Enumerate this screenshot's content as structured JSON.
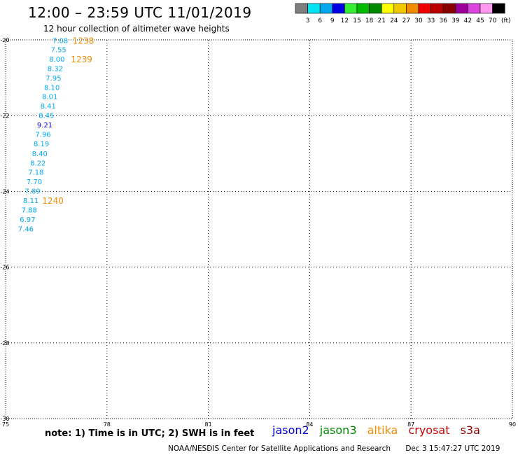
{
  "header": {
    "title": "12:00 – 23:59 UTC 11/01/2019",
    "subtitle": "12 hour collection of altimeter wave heights"
  },
  "color_scale": {
    "unit": "(ft)",
    "bins": [
      {
        "label": "3",
        "color": "#7f7f7f"
      },
      {
        "label": "6",
        "color": "#00e5f0"
      },
      {
        "label": "9",
        "color": "#00a8ee"
      },
      {
        "label": "12",
        "color": "#0000e0"
      },
      {
        "label": "15",
        "color": "#33ee33"
      },
      {
        "label": "18",
        "color": "#00bb00"
      },
      {
        "label": "21",
        "color": "#008800"
      },
      {
        "label": "24",
        "color": "#ffff00"
      },
      {
        "label": "27",
        "color": "#f0c800"
      },
      {
        "label": "30",
        "color": "#f08c00"
      },
      {
        "label": "33",
        "color": "#ee0000"
      },
      {
        "label": "36",
        "color": "#bb0000"
      },
      {
        "label": "39",
        "color": "#880000"
      },
      {
        "label": "42",
        "color": "#9a009a"
      },
      {
        "label": "45",
        "color": "#dd44dd"
      },
      {
        "label": "70",
        "color": "#ff99ee"
      },
      {
        "label": "",
        "color": "#000000"
      }
    ]
  },
  "chart_data": {
    "type": "scatter",
    "xlim": [
      75,
      90
    ],
    "ylim": [
      -30,
      -20
    ],
    "xticks": [
      {
        "value": 75,
        "label": "75"
      },
      {
        "value": 78,
        "label": "78"
      },
      {
        "value": 81,
        "label": "81"
      },
      {
        "value": 84,
        "label": "84"
      },
      {
        "value": 87,
        "label": "87"
      },
      {
        "value": 90,
        "label": "90"
      }
    ],
    "yticks": [
      {
        "value": -20,
        "label": "-20"
      },
      {
        "value": -22,
        "label": "-22"
      },
      {
        "value": -24,
        "label": "-24"
      },
      {
        "value": -26,
        "label": "-26"
      },
      {
        "value": -28,
        "label": "-28"
      },
      {
        "value": -30,
        "label": "-30"
      }
    ],
    "grid": true,
    "points": [
      {
        "lon": 76.85,
        "lat": -20.01,
        "label": "7.08",
        "color": "#00a8ee"
      },
      {
        "lon": 76.8,
        "lat": -20.25,
        "label": "7.55",
        "color": "#00a8ee"
      },
      {
        "lon": 76.75,
        "lat": -20.5,
        "label": "8.00",
        "color": "#00a8ee"
      },
      {
        "lon": 76.7,
        "lat": -20.75,
        "label": "8.32",
        "color": "#00a8ee"
      },
      {
        "lon": 76.65,
        "lat": -21.0,
        "label": "7.95",
        "color": "#00a8ee"
      },
      {
        "lon": 76.6,
        "lat": -21.25,
        "label": "8.10",
        "color": "#00a8ee"
      },
      {
        "lon": 76.54,
        "lat": -21.49,
        "label": "8.01",
        "color": "#00a8ee"
      },
      {
        "lon": 76.49,
        "lat": -21.74,
        "label": "8.41",
        "color": "#00a8ee"
      },
      {
        "lon": 76.44,
        "lat": -21.99,
        "label": "8.45",
        "color": "#00a8ee"
      },
      {
        "lon": 76.39,
        "lat": -22.24,
        "label": "9.21",
        "color": "#0000e0"
      },
      {
        "lon": 76.34,
        "lat": -22.49,
        "label": "7.96",
        "color": "#00a8ee"
      },
      {
        "lon": 76.29,
        "lat": -22.74,
        "label": "8.19",
        "color": "#00a8ee"
      },
      {
        "lon": 76.24,
        "lat": -22.99,
        "label": "8.40",
        "color": "#00a8ee"
      },
      {
        "lon": 76.19,
        "lat": -23.24,
        "label": "8.22",
        "color": "#00a8ee"
      },
      {
        "lon": 76.13,
        "lat": -23.48,
        "label": "7.18",
        "color": "#00a8ee"
      },
      {
        "lon": 76.08,
        "lat": -23.73,
        "label": "7.70",
        "color": "#00a8ee"
      },
      {
        "lon": 76.03,
        "lat": -23.98,
        "label": "7.89",
        "color": "#00a8ee"
      },
      {
        "lon": 75.98,
        "lat": -24.23,
        "label": "8.11",
        "color": "#00a8ee"
      },
      {
        "lon": 75.93,
        "lat": -24.48,
        "label": "7.88",
        "color": "#00a8ee"
      },
      {
        "lon": 75.88,
        "lat": -24.73,
        "label": "6.97",
        "color": "#00a8ee"
      },
      {
        "lon": 75.83,
        "lat": -24.98,
        "label": "7.46",
        "color": "#00a8ee"
      }
    ],
    "time_labels": [
      {
        "lon": 77.3,
        "lat": -20.01,
        "label": "1238",
        "color": "#f08c00"
      },
      {
        "lon": 77.25,
        "lat": -20.5,
        "label": "1239",
        "color": "#f08c00"
      },
      {
        "lon": 76.4,
        "lat": -24.23,
        "label": "1240",
        "color": "#f08c00"
      }
    ]
  },
  "note": "note:  1) Time is in UTC;  2) SWH is in feet",
  "satellites": [
    {
      "name": "jason2",
      "color": "#0000cc"
    },
    {
      "name": "jason3",
      "color": "#008800"
    },
    {
      "name": "altika",
      "color": "#f08c00"
    },
    {
      "name": "cryosat",
      "color": "#cc0000"
    },
    {
      "name": "s3a",
      "color": "#880000"
    }
  ],
  "footer": {
    "credit": "NOAA/NESDIS Center for Satellite Applications and Research",
    "timestamp": "Dec  3 15:47:27 UTC 2019"
  }
}
